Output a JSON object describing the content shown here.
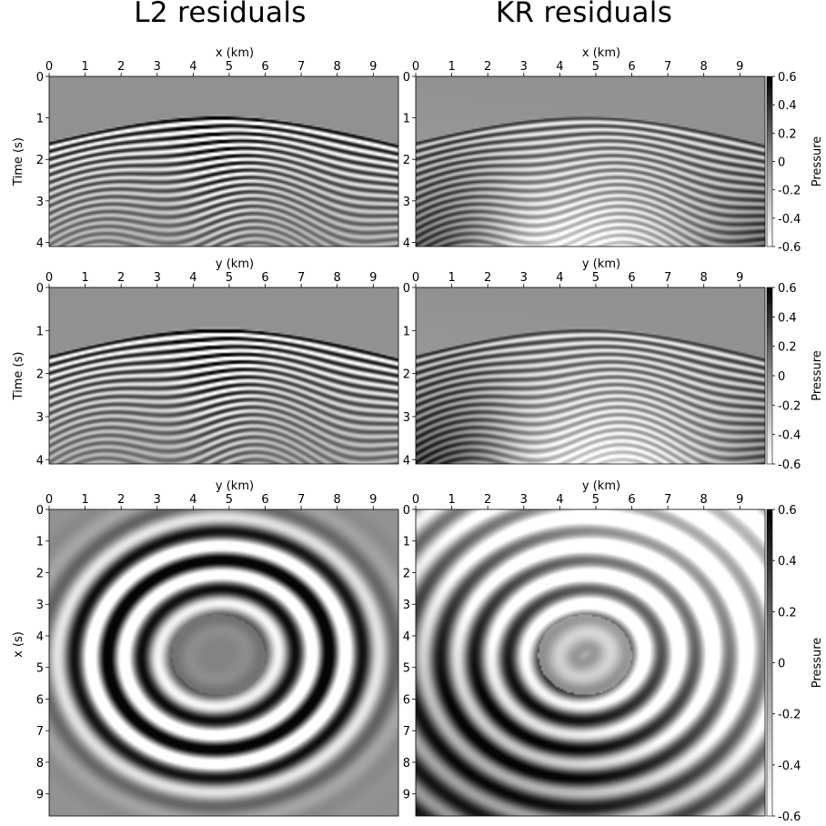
{
  "figure": {
    "titles": [
      "L2 residuals",
      "KR residuals"
    ],
    "colorbar_label": "Pressure",
    "colorbar_ticks": [
      "0.6",
      "0.4",
      "0.2",
      "0",
      "-0.2",
      "-0.4",
      "-0.6"
    ]
  },
  "chart_data": [
    {
      "type": "heatmap",
      "title": "L2 residuals",
      "panel": "row1-left",
      "xlabel": "x (km)",
      "ylabel": "Time (s)",
      "xlim": [
        0,
        9.7
      ],
      "ylim": [
        4.1,
        0
      ],
      "xticks": [
        "0",
        "1",
        "2",
        "3",
        "4",
        "5",
        "6",
        "7",
        "8",
        "9"
      ],
      "yticks": [
        "0",
        "1",
        "2",
        "3",
        "4"
      ],
      "colormap": "grayscale",
      "zlim": [
        -0.6,
        0.6
      ]
    },
    {
      "type": "heatmap",
      "title": "KR residuals",
      "panel": "row1-right",
      "xlabel": "x (km)",
      "ylabel": "",
      "xlim": [
        0,
        9.7
      ],
      "ylim": [
        4.1,
        0
      ],
      "xticks": [
        "0",
        "1",
        "2",
        "3",
        "4",
        "5",
        "6",
        "7",
        "8",
        "9"
      ],
      "yticks": [
        "0",
        "1",
        "2",
        "3",
        "4"
      ],
      "colormap": "grayscale",
      "zlim": [
        -0.6,
        0.6
      ],
      "colorbar": true
    },
    {
      "type": "heatmap",
      "panel": "row2-left",
      "xlabel": "y (km)",
      "ylabel": "Time (s)",
      "xlim": [
        0,
        9.7
      ],
      "ylim": [
        4.1,
        0
      ],
      "xticks": [
        "0",
        "1",
        "2",
        "3",
        "4",
        "5",
        "6",
        "7",
        "8",
        "9"
      ],
      "yticks": [
        "0",
        "1",
        "2",
        "3",
        "4"
      ],
      "colormap": "grayscale",
      "zlim": [
        -0.6,
        0.6
      ]
    },
    {
      "type": "heatmap",
      "panel": "row2-right",
      "xlabel": "y (km)",
      "ylabel": "",
      "xlim": [
        0,
        9.7
      ],
      "ylim": [
        4.1,
        0
      ],
      "xticks": [
        "0",
        "1",
        "2",
        "3",
        "4",
        "5",
        "6",
        "7",
        "8",
        "9"
      ],
      "yticks": [
        "0",
        "1",
        "2",
        "3",
        "4"
      ],
      "colormap": "grayscale",
      "zlim": [
        -0.6,
        0.6
      ],
      "colorbar": true
    },
    {
      "type": "heatmap",
      "panel": "row3-left",
      "xlabel": "y (km)",
      "ylabel": "x (s)",
      "xlim": [
        0,
        9.7
      ],
      "ylim": [
        9.7,
        0
      ],
      "xticks": [
        "0",
        "1",
        "2",
        "3",
        "4",
        "5",
        "6",
        "7",
        "8",
        "9"
      ],
      "yticks": [
        "0",
        "1",
        "2",
        "3",
        "4",
        "5",
        "6",
        "7",
        "8",
        "9"
      ],
      "colormap": "grayscale",
      "zlim": [
        -0.6,
        0.6
      ]
    },
    {
      "type": "heatmap",
      "panel": "row3-right",
      "xlabel": "y (km)",
      "ylabel": "",
      "xlim": [
        0,
        9.7
      ],
      "ylim": [
        9.7,
        0
      ],
      "xticks": [
        "0",
        "1",
        "2",
        "3",
        "4",
        "5",
        "6",
        "7",
        "8",
        "9"
      ],
      "yticks": [
        "0",
        "1",
        "2",
        "3",
        "4",
        "5",
        "6",
        "7",
        "8",
        "9"
      ],
      "colormap": "grayscale",
      "zlim": [
        -0.6,
        0.6
      ],
      "colorbar": true
    }
  ]
}
